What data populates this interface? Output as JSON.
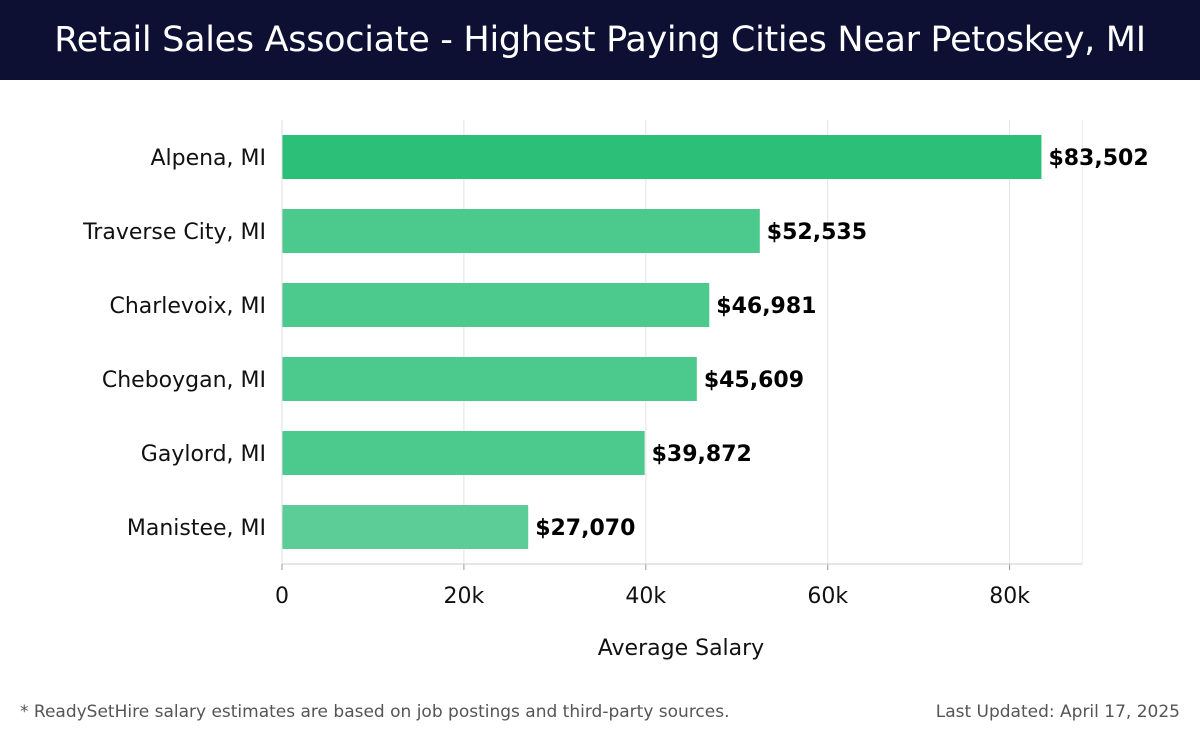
{
  "header": {
    "title": "Retail Sales Associate - Highest Paying Cities Near Petoskey, MI"
  },
  "footer": {
    "note": "* ReadySetHire salary estimates are based on job postings and third-party sources.",
    "updated": "Last Updated: April 17, 2025"
  },
  "colors": {
    "header_bg": "#0d0f33",
    "bar_top": "#2bbf78",
    "bar": "#4cc98d",
    "bar_last": "#5ccd96"
  },
  "chart_data": {
    "type": "bar",
    "orientation": "horizontal",
    "categories": [
      "Alpena, MI",
      "Traverse City, MI",
      "Charlevoix, MI",
      "Cheboygan, MI",
      "Gaylord, MI",
      "Manistee, MI"
    ],
    "values": [
      83502,
      52535,
      46981,
      45609,
      39872,
      27070
    ],
    "value_labels": [
      "$83,502",
      "$52,535",
      "$46,981",
      "$45,609",
      "$39,872",
      "$27,070"
    ],
    "xticks": [
      0,
      20000,
      40000,
      60000,
      80000
    ],
    "xtick_labels": [
      "0",
      "20k",
      "40k",
      "60k",
      "80k"
    ],
    "xlim": [
      0,
      88000
    ],
    "xlabel": "Average Salary",
    "grid": true,
    "legend": "none"
  }
}
